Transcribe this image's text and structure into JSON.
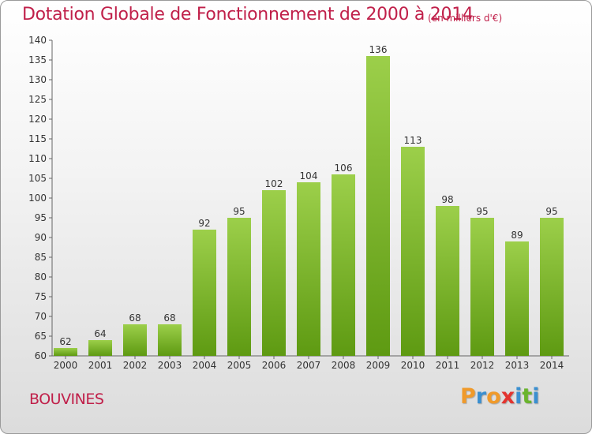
{
  "header": {
    "title": "Dotation Globale de Fonctionnement de 2000 à 2014",
    "subtitle": "(en milliers d'€)"
  },
  "footer": {
    "city": "BOUVINES",
    "brand_letters": [
      "P",
      "r",
      "o",
      "x",
      "i",
      "t",
      "i"
    ],
    "brand_colors": [
      "#f09a2a",
      "#3a8fd0",
      "#f09a2a",
      "#e3342f",
      "#3a8fd0",
      "#6ab42d",
      "#3a8fd0"
    ]
  },
  "colors": {
    "title": "#c0204a",
    "bar_light": "#9ccf4a",
    "bar_dark": "#5e9a12",
    "axis": "#666666",
    "grid": "#dddddd"
  },
  "chart_data": {
    "type": "bar",
    "categories": [
      "2000",
      "2001",
      "2002",
      "2003",
      "2004",
      "2005",
      "2006",
      "2007",
      "2008",
      "2009",
      "2010",
      "2011",
      "2012",
      "2013",
      "2014"
    ],
    "values": [
      62,
      64,
      68,
      68,
      92,
      95,
      102,
      104,
      106,
      136,
      113,
      98,
      95,
      89,
      95
    ],
    "ylim": [
      60,
      140
    ],
    "yticks": [
      60,
      65,
      70,
      75,
      80,
      85,
      90,
      95,
      100,
      105,
      110,
      115,
      120,
      125,
      130,
      135,
      140
    ],
    "data_labels": true,
    "grid": false
  }
}
